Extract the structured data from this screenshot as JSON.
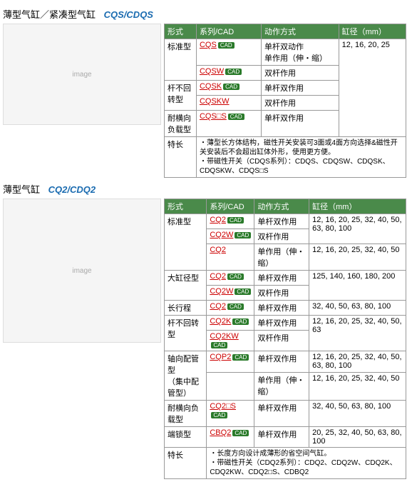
{
  "s1": {
    "title_cn": "薄型气缸／紧凑型气缸",
    "title_code": "CQS/CDQS",
    "headers": [
      "形式",
      "系列/CAD",
      "动作方式",
      "缸径（mm）"
    ],
    "bore": "12, 16, 20, 25",
    "rows": [
      {
        "form": "标准型",
        "rs": 3,
        "series": "CQS",
        "cad": true,
        "action": "单杆双动作\n单作用（伸・缩）"
      },
      {
        "series": "CQSW",
        "cad": true,
        "action": "双杆作用"
      },
      {
        "series": "CQSK",
        "cad": true,
        "action": "单杆双作用"
      }
    ],
    "row2": {
      "form": "杆不回转型",
      "series": "CQSKW",
      "action": "双杆作用"
    },
    "row3": {
      "form": "耐横向负载型",
      "series": "CQS□S",
      "cad": true,
      "action": "单杆双作用"
    },
    "note_label": "特长",
    "note": "・薄型长方体结构，磁性开关安装可3面或4面方向选择&磁性开关安装后不会超出缸体外形，使用更方便。\n・带磁性开关（CDQS系列）：CDQS、CDQSW、CDQSK、CDQSKW、CDQS□S"
  },
  "s2": {
    "title_cn": "薄型气缸",
    "title_code": "CQ2/CDQ2",
    "headers": [
      "形式",
      "系列/CAD",
      "动作方式",
      "缸径（mm）"
    ],
    "groups": [
      {
        "form": "标准型",
        "rows": [
          {
            "series": "CQ2",
            "cad": true,
            "action": "单杆双作用",
            "bore": "12, 16, 20, 25, 32, 40, 50, 63, 80, 100"
          },
          {
            "series": "CQ2W",
            "cad": true,
            "action": "双杆作用"
          },
          {
            "series": "CQ2",
            "action": "单作用（伸・缩）",
            "bore": "12, 16, 20, 25, 32, 40, 50"
          }
        ]
      },
      {
        "form": "大缸径型",
        "rows": [
          {
            "series": "CQ2",
            "cad": true,
            "action": "单杆双作用",
            "bore": "125, 140, 160, 180, 200"
          },
          {
            "series": "CQ2W",
            "cad": true,
            "action": "双杆作用"
          }
        ]
      },
      {
        "form": "长行程",
        "rows": [
          {
            "series": "CQ2",
            "cad": true,
            "action": "单杆双作用",
            "bore": "32, 40, 50, 63, 80, 100"
          }
        ]
      },
      {
        "form": "杆不回转型",
        "rows": [
          {
            "series": "CQ2K",
            "cad": true,
            "action": "单杆双作用",
            "bore": "12, 16, 20, 25, 32, 40, 50, 63"
          },
          {
            "series": "CQ2KW",
            "cad": true,
            "action": "双杆作用"
          }
        ]
      },
      {
        "form": "轴向配管型\n（集中配管型）",
        "rows": [
          {
            "series": "CQP2",
            "cad": true,
            "action": "单杆双作用",
            "bore": "12, 16, 20, 25, 32, 40, 50, 63, 80, 100"
          },
          {
            "series": "",
            "action": "单作用（伸・缩）",
            "bore": "12, 16, 20, 25, 32, 40, 50"
          }
        ]
      },
      {
        "form": "耐横向负载型",
        "rows": [
          {
            "series": "CQ2□S",
            "cad": true,
            "action": "单杆双作用",
            "bore": "32, 40, 50, 63, 80, 100"
          }
        ]
      },
      {
        "form": "端锁型",
        "rows": [
          {
            "series": "CBQ2",
            "cad": true,
            "action": "单杆双作用",
            "bore": "20, 25, 32, 40, 50, 63, 80, 100"
          }
        ]
      }
    ],
    "note_label": "特长",
    "note": "・长度方向设计成薄形的省空间气缸。\n・带磁性开关（CDQ2系列）：CDQ2、CDQ2W、CDQ2K、CDQ2KW、CDQ2□S、CDBQ2"
  },
  "cad_label": "CAD"
}
